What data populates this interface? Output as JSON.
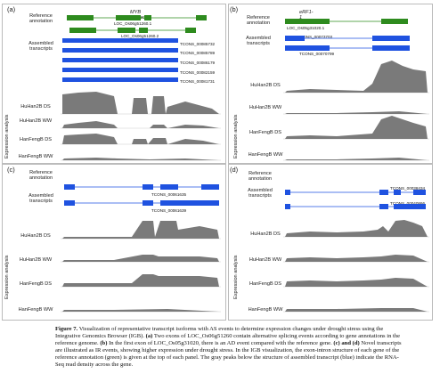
{
  "panels": {
    "a": {
      "label": "(a)",
      "gene": "MYB related",
      "ref_label": "Reference\nannotation",
      "asm_label": "Assembled\ntranscripts",
      "expr_label": "Expression analysis",
      "ref_ids": [
        "LOC_Os06g51260.1",
        "LOC_Os06g51260.2"
      ],
      "asm_ids": [
        "TCONS_00085732",
        "TCONS_00085789",
        "TCONS_00086179",
        "TCONS_00082159",
        "TCONS_00081731"
      ],
      "tracks": [
        "HuHan2B DS",
        "HuHan2B WW",
        "HanFengB DS",
        "HanFengB WW"
      ]
    },
    "b": {
      "label": "(b)",
      "gene": "eRF1-1",
      "ref_label": "Reference\nannotation",
      "asm_label": "Assembled\ntranscripts",
      "expr_label": "Expression analysis",
      "ref_ids": [
        "LOC_Os05g31020.1"
      ],
      "asm_ids": [
        "TCONS_00073703",
        "TCONS_00070799"
      ],
      "tracks": [
        "HuHan2B DS",
        "HuHan2B WW",
        "HanFengB DS",
        "HanFengB WW"
      ]
    },
    "c": {
      "label": "(c)",
      "ref_label": "Reference\nannotation",
      "asm_label": "Assembled\ntranscripts",
      "expr_label": "Expression analysis",
      "asm_ids": [
        "TCONS_00061635",
        "TCONS_00061639"
      ],
      "tracks": [
        "HuHan2B DS",
        "HuHan2B WW",
        "HanFengB DS",
        "HanFengB WW"
      ]
    },
    "d": {
      "label": "(d)",
      "ref_label": "Reference\nannotation",
      "asm_label": "Assembled\ntranscripts",
      "expr_label": "Expression analysis",
      "asm_ids": [
        "TCONS_00038434",
        "TCONS_00040866"
      ],
      "tracks": [
        "HuHan2B DS",
        "HuHan2B WW",
        "HanFengB DS",
        "HanFengB WW"
      ]
    }
  },
  "caption": {
    "lead": "Figure 7.",
    "title": "Visualization of representative transcript isoforms with AS events to determine expression changes under drought stress using the Integrative Genomics Browser (IGB).",
    "a_tag": "(a)",
    "a_text": "Two exons of LOC_Os06g51260 contain alternative splicing events according to gene annotations in the reference genome.",
    "b_tag": "(b)",
    "b_text": "In the first exon of LOC_Os05g31020, there is an AD event compared with the reference gene.",
    "cd_tag": "(c) and (d)",
    "cd_text": "Novel transcripts are illustrated as IR events, showing higher expression under drought stress. In the IGB visualization, the exon-intron structure of each gene of the reference annotation (green) is given at the top of each panel. The gray peaks below the structure of assembled transcript (blue) indicate the RNA-Seq read density across the gene."
  },
  "colors": {
    "reference": "#2e8b1e",
    "assembled": "#1f52e0",
    "coverage": "#7a7a7a"
  }
}
